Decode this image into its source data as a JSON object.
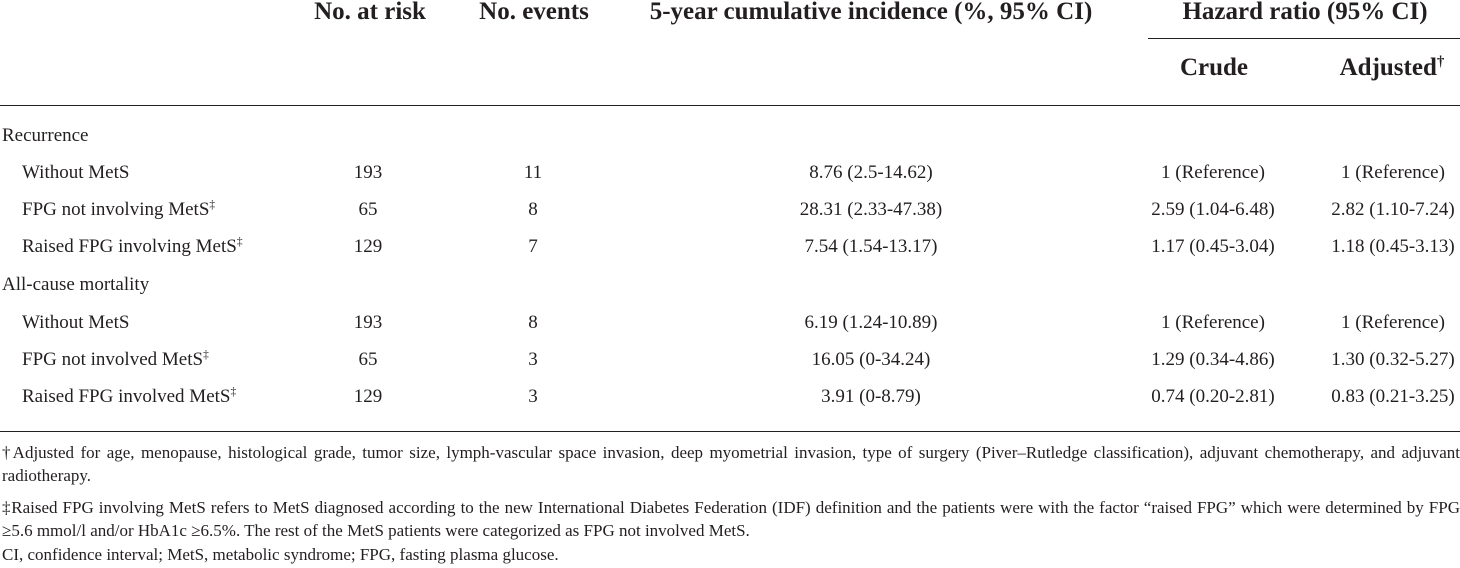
{
  "header": {
    "no_at_risk": "No. at risk",
    "no_events": "No. events",
    "incidence": "5-year cumulative incidence (%, 95% CI)",
    "hazard_ratio": "Hazard ratio (95% CI)",
    "crude": "Crude",
    "adjusted": "Adjusted",
    "adjusted_mark": "†"
  },
  "sections": [
    {
      "title": "Recurrence",
      "rows": [
        {
          "label": "Without MetS",
          "mark": "",
          "risk": "193",
          "events": "11",
          "incidence": "8.76 (2.5-14.62)",
          "crude": "1 (Reference)",
          "adjusted": "1 (Reference)"
        },
        {
          "label": "FPG not involving MetS",
          "mark": "‡",
          "risk": "65",
          "events": "8",
          "incidence": "28.31 (2.33-47.38)",
          "crude": "2.59 (1.04-6.48)",
          "adjusted": "2.82 (1.10-7.24)"
        },
        {
          "label": "Raised FPG involving MetS",
          "mark": "‡",
          "risk": "129",
          "events": "7",
          "incidence": "7.54 (1.54-13.17)",
          "crude": "1.17 (0.45-3.04)",
          "adjusted": "1.18 (0.45-3.13)"
        }
      ]
    },
    {
      "title": "All-cause mortality",
      "rows": [
        {
          "label": "Without MetS",
          "mark": "",
          "risk": "193",
          "events": "8",
          "incidence": "6.19 (1.24-10.89)",
          "crude": "1 (Reference)",
          "adjusted": "1 (Reference)"
        },
        {
          "label": "FPG not involved MetS",
          "mark": "‡",
          "risk": "65",
          "events": "3",
          "incidence": "16.05 (0-34.24)",
          "crude": "1.29 (0.34-4.86)",
          "adjusted": "1.30 (0.32-5.27)"
        },
        {
          "label": "Raised FPG involved MetS",
          "mark": "‡",
          "risk": "129",
          "events": "3",
          "incidence": "3.91 (0-8.79)",
          "crude": "0.74 (0.20-2.81)",
          "adjusted": "0.83 (0.21-3.25)"
        }
      ]
    }
  ],
  "footnotes": {
    "dagger": "†Adjusted for age, menopause, histological grade, tumor size, lymph-vascular space invasion, deep myometrial invasion, type of surgery (Piver–Rutledge classification), adjuvant chemotherapy, and adjuvant radiotherapy.",
    "double_dagger": "‡Raised FPG involving MetS refers to MetS diagnosed according to the new International Diabetes Federation (IDF) definition and the patients were with the factor “raised FPG” which were determined by FPG ≥5.6 mmol/l and/or HbA1c ≥6.5%. The rest of the MetS patients were categorized as FPG not involved MetS.",
    "abbreviations": "CI, confidence interval; MetS, metabolic syndrome; FPG, fasting plasma glucose."
  }
}
